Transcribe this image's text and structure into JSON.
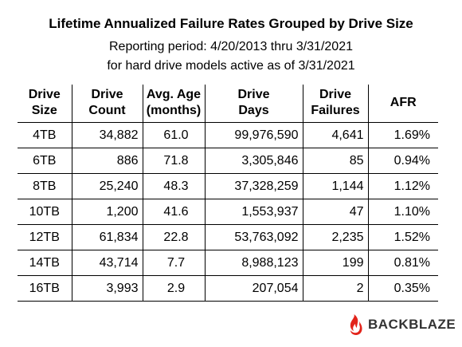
{
  "title": "Lifetime Annualized Failure Rates Grouped by Drive Size",
  "subtitle_line1": "Reporting period: 4/20/2013 thru 3/31/2021",
  "subtitle_line2": "for hard drive models active as of 3/31/2021",
  "headers": [
    [
      "Drive",
      "Size"
    ],
    [
      "Drive",
      "Count"
    ],
    [
      "Avg. Age",
      "(months)"
    ],
    [
      "Drive",
      "Days"
    ],
    [
      "Drive",
      "Failures"
    ],
    [
      "AFR",
      ""
    ]
  ],
  "rows": [
    [
      "4TB",
      "34,882",
      "61.0",
      "99,976,590",
      "4,641",
      "1.69%"
    ],
    [
      "6TB",
      "886",
      "71.8",
      "3,305,846",
      "85",
      "0.94%"
    ],
    [
      "8TB",
      "25,240",
      "48.3",
      "37,328,259",
      "1,144",
      "1.12%"
    ],
    [
      "10TB",
      "1,200",
      "41.6",
      "1,553,937",
      "47",
      "1.10%"
    ],
    [
      "12TB",
      "61,834",
      "22.8",
      "53,763,092",
      "2,235",
      "1.52%"
    ],
    [
      "14TB",
      "43,714",
      "7.7",
      "8,988,123",
      "199",
      "0.81%"
    ],
    [
      "16TB",
      "3,993",
      "2.9",
      "207,054",
      "2",
      "0.35%"
    ]
  ],
  "logo": {
    "text": "BACKBLAZE",
    "icon": "flame-icon",
    "color": "#e2231a"
  }
}
